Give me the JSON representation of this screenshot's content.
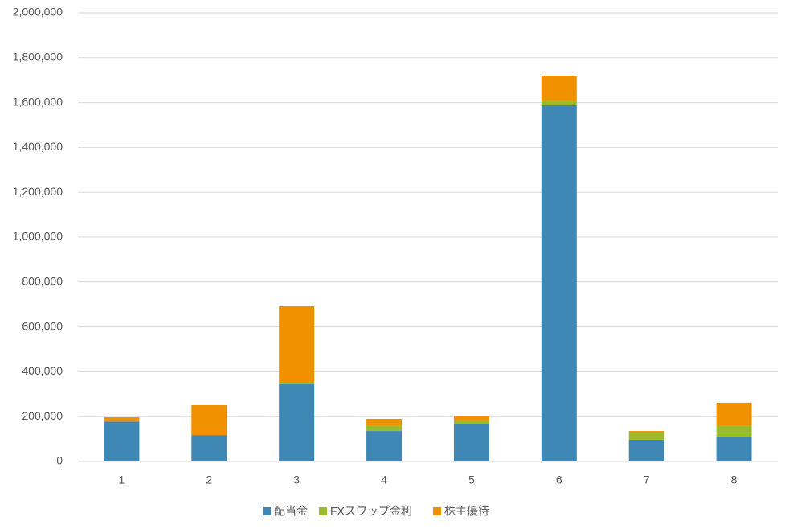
{
  "chart_data": {
    "type": "stacked_bar",
    "categories": [
      "1",
      "2",
      "3",
      "4",
      "5",
      "6",
      "7",
      "8"
    ],
    "series": [
      {
        "name": "配当金",
        "color": "#3f87b4",
        "values": [
          178000,
          118000,
          344000,
          136000,
          165000,
          1588000,
          97000,
          111000
        ]
      },
      {
        "name": "FXスワップ金利",
        "color": "#9bbb2e",
        "values": [
          0,
          0,
          7000,
          22000,
          18000,
          18000,
          32000,
          47000
        ]
      },
      {
        "name": "株主優待",
        "color": "#f29100",
        "values": [
          19000,
          133000,
          341000,
          32000,
          21000,
          114000,
          7000,
          104000
        ]
      }
    ],
    "ylim": [
      0,
      2000000
    ],
    "yticks": [
      0,
      {
        "value": 200000,
        "label": "200,000"
      },
      {
        "value": 400000,
        "label": "400,000"
      },
      {
        "value": 600000,
        "label": "600,000"
      },
      {
        "value": 800000,
        "label": "800,000"
      },
      {
        "value": 1000000,
        "label": "1,000,000"
      },
      {
        "value": 1200000,
        "label": "1,200,000"
      },
      {
        "value": 1400000,
        "label": "1,400,000"
      },
      {
        "value": 1600000,
        "label": "1,600,000"
      },
      {
        "value": 1800000,
        "label": "1,800,000"
      },
      {
        "value": 2000000,
        "label": "2,000,000"
      }
    ],
    "grid": true,
    "legend": "bottom"
  }
}
